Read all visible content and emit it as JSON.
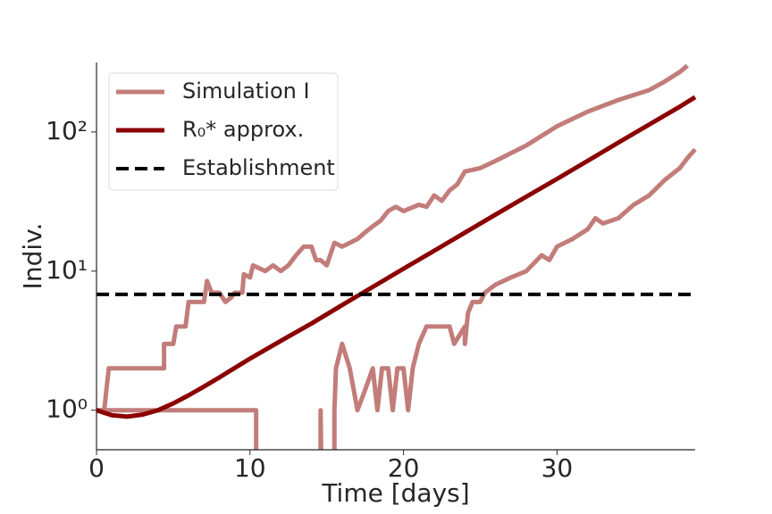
{
  "chart_data": {
    "type": "line",
    "xlabel": "Time [days]",
    "ylabel": "Indiv.",
    "xlim": [
      0,
      39
    ],
    "xticks": [
      0,
      10,
      20,
      30
    ],
    "ylim": [
      0.52,
      316
    ],
    "log_y": true,
    "yticks": [
      {
        "value": 1,
        "label": "10⁰"
      },
      {
        "value": 10,
        "label": "10¹"
      },
      {
        "value": 100,
        "label": "10²"
      }
    ],
    "legend": "upper left",
    "grid": false,
    "series": [
      {
        "name": "Simulation I",
        "color": "#c27d7a",
        "dash": false,
        "x": [
          0,
          0.5,
          0.8,
          4.4,
          4.4,
          5,
          5.2,
          5.8,
          6,
          7,
          7.2,
          7.5,
          8,
          8.4,
          8.8,
          9,
          9.5,
          9.6,
          10,
          10.2,
          11,
          11.5,
          12,
          12.5,
          13,
          13.5,
          14,
          14.3,
          14.6,
          15,
          15.5,
          16,
          17,
          17.5,
          18,
          18.5,
          19,
          19.5,
          20,
          21,
          21.5,
          22,
          22.5,
          23,
          23.5,
          24,
          25,
          26,
          28,
          30,
          32,
          34,
          36,
          37,
          38,
          38.5
        ],
        "values": [
          1,
          1,
          2,
          2,
          3,
          3,
          4,
          4,
          6,
          6,
          8.5,
          7,
          7,
          6,
          6.5,
          7,
          7,
          9.5,
          9,
          11,
          10,
          11,
          10,
          11,
          13,
          15,
          15,
          12,
          12,
          11,
          16,
          15,
          17,
          19,
          21,
          23,
          27,
          29,
          27,
          30,
          29,
          35,
          32,
          38,
          42,
          52,
          55,
          62,
          80,
          110,
          140,
          170,
          200,
          230,
          270,
          300
        ]
      },
      {
        "name": null,
        "color": "#c27d7a",
        "dash": false,
        "x": [
          0,
          10.4,
          10.4,
          14.6,
          14.6,
          14.65,
          15.5,
          15.5,
          15.6,
          16,
          16.5,
          17,
          17.5,
          18,
          18.3,
          18.6,
          19,
          19.3,
          19.6,
          20,
          20.3,
          20.6,
          21,
          21.5,
          23,
          23.3,
          24,
          24,
          24.2,
          24.5,
          25,
          25.3,
          26,
          27,
          28,
          29,
          29.5,
          30,
          31,
          32,
          32.5,
          33,
          34,
          35,
          36,
          37,
          38,
          38.5,
          39
        ],
        "values": [
          1,
          1,
          0,
          0,
          1,
          0,
          0,
          1,
          2,
          3,
          2,
          1,
          1.4,
          2,
          1,
          2,
          2,
          1,
          2,
          2,
          1,
          2,
          3,
          4,
          4,
          3,
          4,
          3,
          5,
          6,
          6,
          7,
          8,
          9,
          10,
          13,
          12,
          15,
          17,
          20,
          24,
          22,
          24,
          30,
          35,
          45,
          55,
          65,
          75
        ]
      },
      {
        "name": "R₀* approx.",
        "color": "#8b0000",
        "dash": false,
        "x": [
          0,
          1,
          2,
          3,
          4,
          5,
          6,
          7,
          8,
          10,
          12,
          14,
          16,
          18,
          20,
          22,
          24,
          26,
          28,
          30,
          32,
          34,
          36,
          38,
          39
        ],
        "values": [
          1.0,
          0.92,
          0.9,
          0.93,
          1.0,
          1.12,
          1.28,
          1.48,
          1.72,
          2.35,
          3.15,
          4.2,
          5.7,
          7.7,
          10.4,
          14,
          18.9,
          25.5,
          34.3,
          46,
          62,
          84,
          113,
          152,
          178
        ]
      },
      {
        "name": "Establishment",
        "color": "#000000",
        "dash": true,
        "x": [
          0,
          39
        ],
        "values": [
          6.8,
          6.8
        ]
      }
    ]
  }
}
